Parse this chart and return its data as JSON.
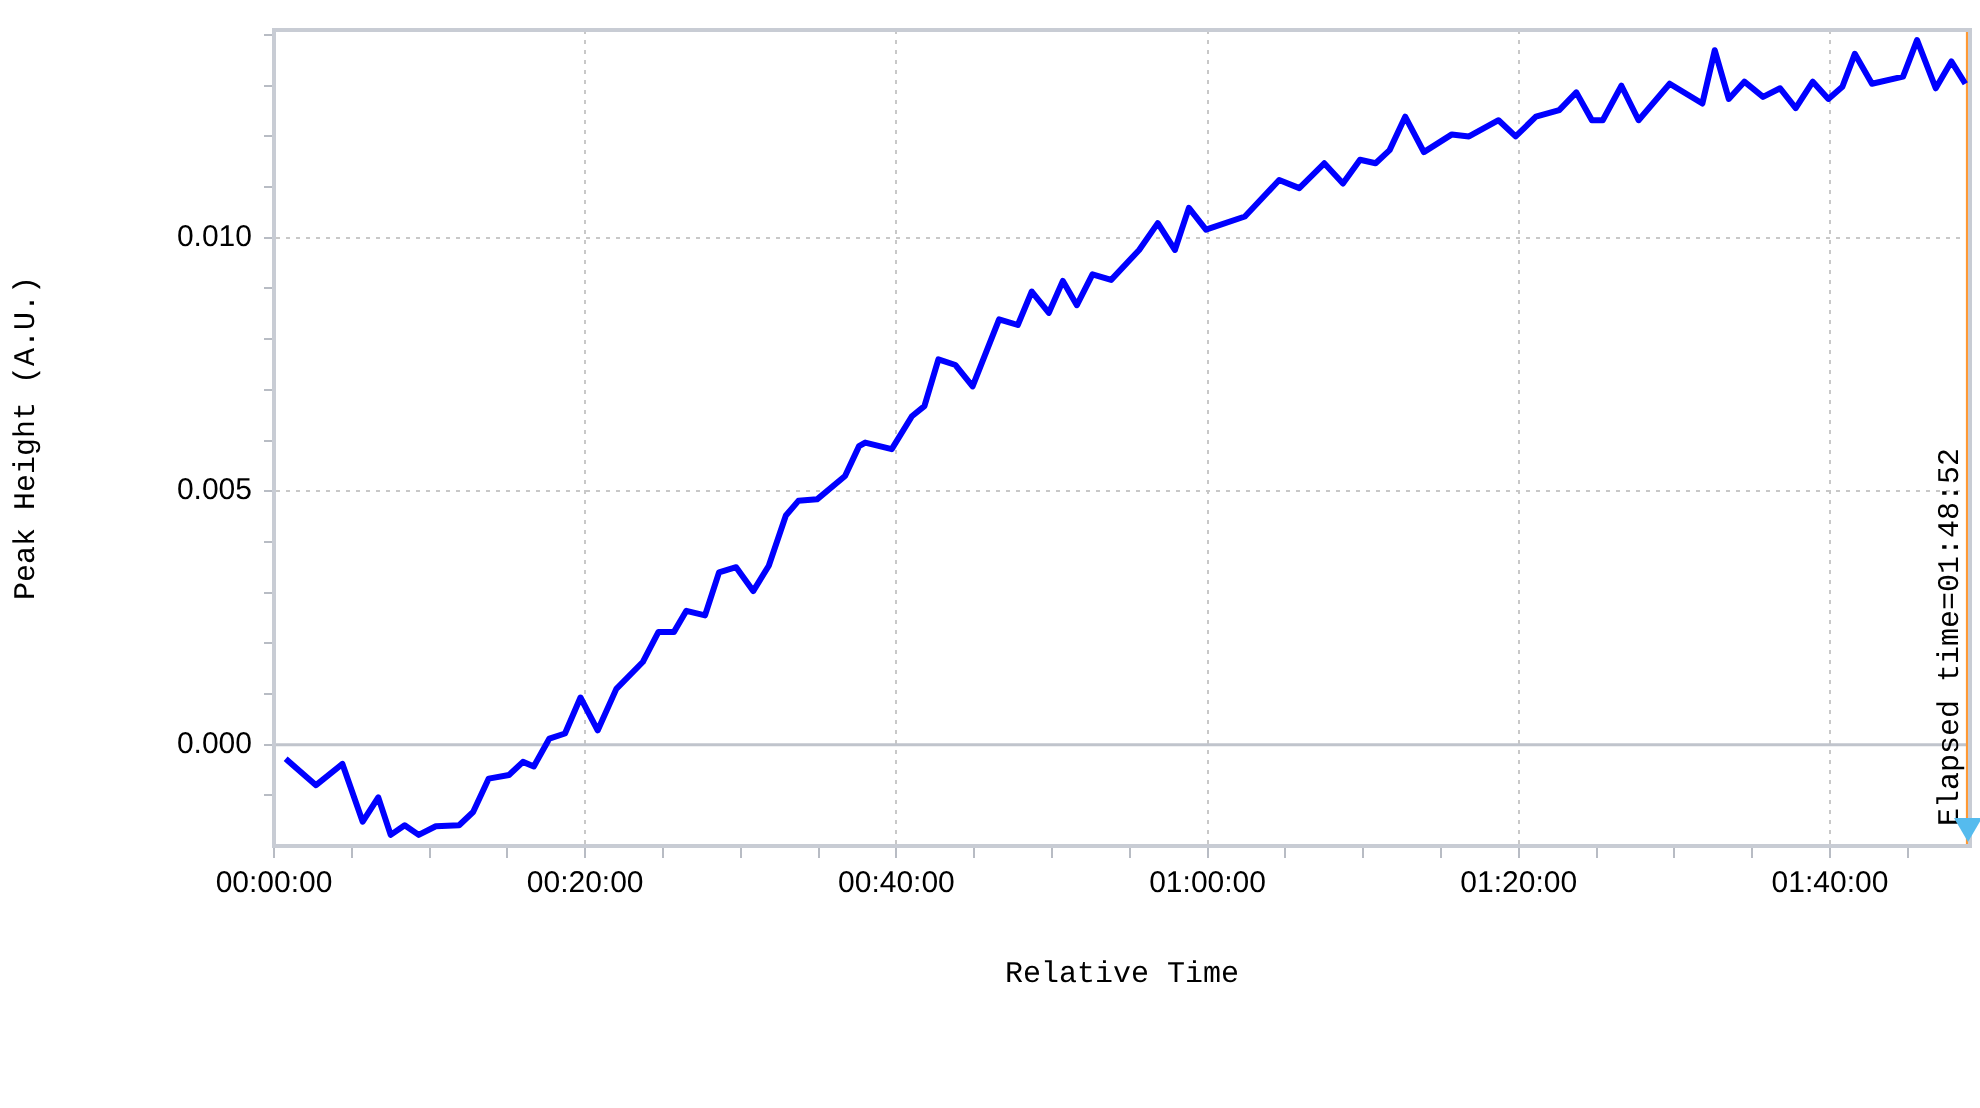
{
  "chart_data": {
    "type": "line",
    "xlabel": "Relative Time",
    "ylabel": "Peak Height (A.U.)",
    "x": [
      0.0125,
      0.045,
      0.0733,
      0.095,
      0.1117,
      0.125,
      0.14,
      0.155,
      0.1733,
      0.1983,
      0.2133,
      0.23,
      0.2517,
      0.2667,
      0.2783,
      0.295,
      0.3117,
      0.3283,
      0.3467,
      0.3667,
      0.395,
      0.4117,
      0.4283,
      0.4417,
      0.4617,
      0.4767,
      0.495,
      0.5133,
      0.53,
      0.5483,
      0.5617,
      0.5817,
      0.6117,
      0.6267,
      0.6333,
      0.6617,
      0.6833,
      0.6967,
      0.7117,
      0.73,
      0.7483,
      0.7767,
      0.7967,
      0.8117,
      0.83,
      0.845,
      0.86,
      0.8767,
      0.8967,
      0.9267,
      0.9467,
      0.965,
      0.98,
      0.9983,
      1.04,
      1.0767,
      1.0983,
      1.125,
      1.145,
      1.1633,
      1.18,
      1.195,
      1.2117,
      1.2317,
      1.2617,
      1.28,
      1.3117,
      1.33,
      1.3517,
      1.3767,
      1.395,
      1.4117,
      1.4233,
      1.4433,
      1.4617,
      1.495,
      1.53,
      1.5433,
      1.5583,
      1.575,
      1.595,
      1.6133,
      1.63,
      1.6483,
      1.665,
      1.68,
      1.6933,
      1.7117,
      1.745,
      1.76,
      1.78,
      1.7967,
      1.8117
    ],
    "series": [
      {
        "color": "#0000ff",
        "values": [
          -0.00028,
          -0.0008,
          -0.00038,
          -0.00152,
          -0.00104,
          -0.00178,
          -0.00159,
          -0.00178,
          -0.00161,
          -0.00159,
          -0.00133,
          -0.00067,
          -0.0006,
          -0.00034,
          -0.00043,
          0.00012,
          0.00022,
          0.00093,
          0.00028,
          0.0011,
          0.00163,
          0.00222,
          0.00222,
          0.00264,
          0.00255,
          0.0034,
          0.0035,
          0.00303,
          0.00353,
          0.00452,
          0.00481,
          0.00484,
          0.0053,
          0.00589,
          0.00596,
          0.00583,
          0.00648,
          0.00668,
          0.0076,
          0.00749,
          0.00707,
          0.00839,
          0.00828,
          0.00894,
          0.00852,
          0.00915,
          0.00867,
          0.00928,
          0.00917,
          0.00976,
          0.01029,
          0.00976,
          0.01059,
          0.01016,
          0.01042,
          0.01114,
          0.01098,
          0.01147,
          0.01107,
          0.01154,
          0.01147,
          0.01173,
          0.01239,
          0.01169,
          0.01204,
          0.012,
          0.01232,
          0.012,
          0.01239,
          0.01252,
          0.01287,
          0.01232,
          0.01232,
          0.013,
          0.01232,
          0.01304,
          0.01265,
          0.0137,
          0.01274,
          0.01308,
          0.01278,
          0.01295,
          0.01256,
          0.01308,
          0.01274,
          0.01298,
          0.01363,
          0.01304,
          0.01318,
          0.0139,
          0.01295,
          0.01348,
          0.01304
        ]
      }
    ],
    "xlim": [
      0,
      1.8167
    ],
    "xticks": [
      {
        "value": 0,
        "label": "00:00:00"
      },
      {
        "value": 0.0833,
        "label": null
      },
      {
        "value": 0.1667,
        "label": null
      },
      {
        "value": 0.25,
        "label": null
      },
      {
        "value": 0.3333,
        "label": "00:20:00"
      },
      {
        "value": 0.4167,
        "label": null
      },
      {
        "value": 0.5,
        "label": null
      },
      {
        "value": 0.5833,
        "label": null
      },
      {
        "value": 0.6667,
        "label": "00:40:00"
      },
      {
        "value": 0.75,
        "label": null
      },
      {
        "value": 0.8333,
        "label": null
      },
      {
        "value": 0.9167,
        "label": null
      },
      {
        "value": 1,
        "label": "01:00:00"
      },
      {
        "value": 1.0833,
        "label": null
      },
      {
        "value": 1.1667,
        "label": null
      },
      {
        "value": 1.25,
        "label": null
      },
      {
        "value": 1.3333,
        "label": "01:20:00"
      },
      {
        "value": 1.4167,
        "label": null
      },
      {
        "value": 1.5,
        "label": null
      },
      {
        "value": 1.5833,
        "label": null
      },
      {
        "value": 1.6667,
        "label": "01:40:00"
      },
      {
        "value": 1.75,
        "label": null
      }
    ],
    "ylim": [
      -0.002,
      0.0141
    ],
    "yticks": [
      {
        "value": -0.001,
        "label": null
      },
      {
        "value": 0,
        "label": "0.000"
      },
      {
        "value": 0.001,
        "label": null
      },
      {
        "value": 0.002,
        "label": null
      },
      {
        "value": 0.003,
        "label": null
      },
      {
        "value": 0.004,
        "label": null
      },
      {
        "value": 0.005,
        "label": "0.005"
      },
      {
        "value": 0.006,
        "label": null
      },
      {
        "value": 0.007,
        "label": null
      },
      {
        "value": 0.008,
        "label": null
      },
      {
        "value": 0.009,
        "label": null
      },
      {
        "value": 0.01,
        "label": "0.010"
      },
      {
        "value": 0.011,
        "label": null
      },
      {
        "value": 0.012,
        "label": null
      },
      {
        "value": 0.013,
        "label": null
      },
      {
        "value": 0.014,
        "label": null
      }
    ],
    "ref_lines": [
      {
        "axis": "y",
        "value": 0,
        "color": "#c0c4cc"
      },
      {
        "axis": "x",
        "value": 1.8144444,
        "color": "#ff9933"
      }
    ],
    "annotations": [
      "Elapsed time=01:48:52"
    ],
    "grid": true,
    "marker": "none",
    "line_style": "solid",
    "legend": false
  }
}
